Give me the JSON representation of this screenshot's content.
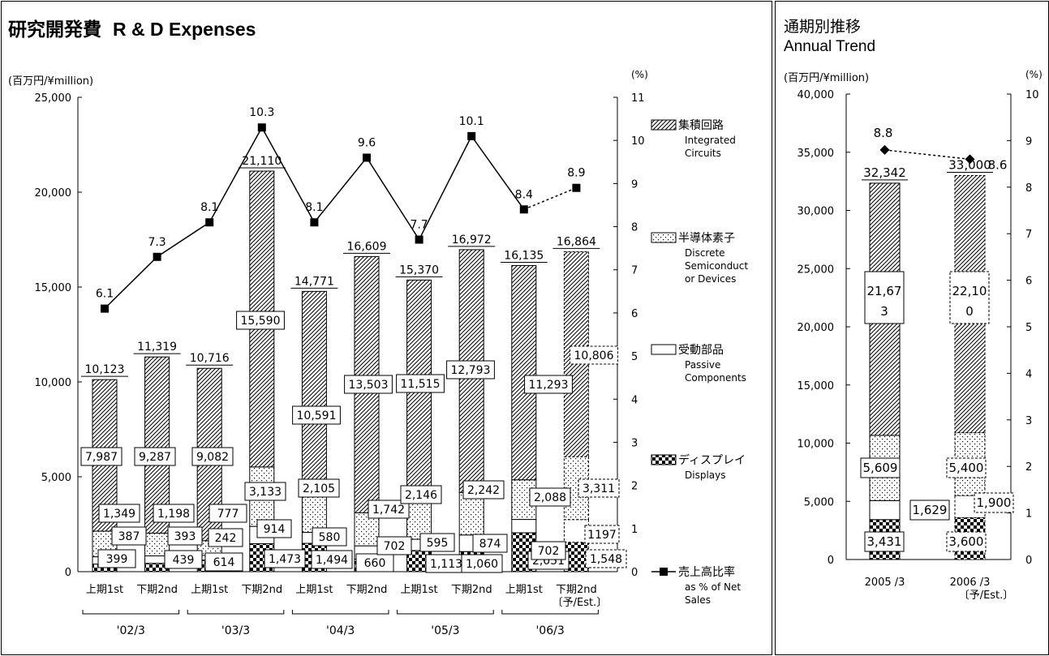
{
  "left_panel": {
    "title_ja": "研究開発費",
    "title_en": "R & D Expenses"
  },
  "right_panel": {
    "title_ja": "通期別推移",
    "title_en": "Annual Trend"
  },
  "colors": {
    "axis": "#000000",
    "bar_outline": "#000000",
    "estimate_outline": "#000000",
    "background": "#ffffff"
  },
  "chart_data": [
    {
      "type": "bar",
      "stacked": true,
      "title": "研究開発費 R & D Expenses",
      "ylabel": "(百万円/¥million)",
      "y2label": "(%)",
      "ylim": [
        0,
        25000
      ],
      "y2lim": [
        0,
        11
      ],
      "yticks": [
        "0",
        "5,000",
        "10,000",
        "15,000",
        "20,000",
        "25,000"
      ],
      "y2ticks": [
        "0",
        "1",
        "2",
        "3",
        "4",
        "5",
        "6",
        "7",
        "8",
        "9",
        "10",
        "11"
      ],
      "categories": [
        "上期1st",
        "下期2nd",
        "上期1st",
        "下期2nd",
        "上期1st",
        "下期2nd",
        "上期1st",
        "下期2nd",
        "上期1st",
        "下期2nd"
      ],
      "estimate_category_note": "〔予/Est.〕",
      "estimate_index": 9,
      "groups": [
        {
          "label": "'02/3",
          "from": 0,
          "to": 1
        },
        {
          "label": "'03/3",
          "from": 2,
          "to": 3
        },
        {
          "label": "'04/3",
          "from": 4,
          "to": 5
        },
        {
          "label": "'05/3",
          "from": 6,
          "to": 7
        },
        {
          "label": "'06/3",
          "from": 8,
          "to": 9
        }
      ],
      "series": [
        {
          "name": "ディスプレイ Displays",
          "pattern": "checker",
          "values": [
            399,
            439,
            614,
            1473,
            1494,
            660,
            1113,
            1060,
            2051,
            1548
          ],
          "labels": [
            "399",
            "439",
            "614",
            "1,473",
            "1,494",
            "660",
            "1,113",
            "1,060",
            "2,051",
            "1,548"
          ]
        },
        {
          "name": "受動部品 Passive Components",
          "pattern": "plain",
          "values": [
            387,
            393,
            242,
            914,
            580,
            702,
            595,
            874,
            702,
            1197
          ],
          "labels": [
            "387",
            "393",
            "242",
            "914",
            "580",
            "702",
            "595",
            "874",
            "702",
            "1197"
          ]
        },
        {
          "name": "半導体素子 Discrete Semiconductor Devices",
          "pattern": "dots",
          "values": [
            1349,
            1198,
            777,
            3133,
            2105,
            1742,
            2146,
            2242,
            2088,
            3311
          ],
          "labels": [
            "1,349",
            "1,198",
            "777",
            "3,133",
            "2,105",
            "1,742",
            "2,146",
            "2,242",
            "2,088",
            "3,311"
          ]
        },
        {
          "name": "集積回路 Integrated Circuits",
          "pattern": "hatch",
          "values": [
            7987,
            9287,
            9082,
            15590,
            10591,
            13503,
            11515,
            12793,
            11293,
            10806
          ],
          "labels": [
            "7,987",
            "9,287",
            "9,082",
            "15,590",
            "10,591",
            "13,503",
            "11,515",
            "12,793",
            "11,293",
            "10,806"
          ]
        }
      ],
      "totals": [
        10123,
        11319,
        10716,
        21110,
        14771,
        16609,
        15370,
        16972,
        16135,
        16864
      ],
      "total_labels": [
        "10,123",
        "11,319",
        "10,716",
        "21,110",
        "14,771",
        "16,609",
        "15,370",
        "16,972",
        "16,135",
        "16,864"
      ],
      "line": {
        "name": "売上高比率 as % of Net Sales",
        "axis": "y2",
        "values": [
          6.1,
          7.3,
          8.1,
          10.3,
          8.1,
          9.6,
          7.7,
          10.1,
          8.4,
          8.9
        ],
        "labels": [
          "6.1",
          "7.3",
          "8.1",
          "10.3",
          "8.1",
          "9.6",
          "7.7",
          "10.1",
          "8.4",
          "8.9"
        ]
      },
      "legend": [
        {
          "pattern": "hatch",
          "ja": "集積回路",
          "en": [
            "Integrated",
            "Circuits"
          ]
        },
        {
          "pattern": "dots",
          "ja": "半導体素子",
          "en": [
            "Discrete",
            "Semiconduct",
            "or Devices"
          ]
        },
        {
          "pattern": "plain",
          "ja": "受動部品",
          "en": [
            "Passive",
            "Components"
          ]
        },
        {
          "pattern": "checker",
          "ja": "ディスプレイ",
          "en": [
            "Displays"
          ]
        },
        {
          "pattern": "line",
          "ja": "売上高比率",
          "en": [
            "as % of Net",
            "Sales"
          ]
        }
      ],
      "legend_position": "right"
    },
    {
      "type": "bar",
      "stacked": true,
      "title": "通期別推移 Annual Trend",
      "ylabel": "(百万円/¥million)",
      "y2label": "(%)",
      "ylim": [
        0,
        40000
      ],
      "y2lim": [
        0,
        10
      ],
      "yticks": [
        "0",
        "5,000",
        "10,000",
        "15,000",
        "20,000",
        "25,000",
        "30,000",
        "35,000",
        "40,000"
      ],
      "y2ticks": [
        "0",
        "1",
        "2",
        "3",
        "4",
        "5",
        "6",
        "7",
        "8",
        "9",
        "10"
      ],
      "categories": [
        "2005 /3",
        "2006 /3"
      ],
      "estimate_category_note": "〔予/Est.〕",
      "estimate_index": 1,
      "series": [
        {
          "name": "ディスプレイ Displays",
          "pattern": "checker",
          "values": [
            3431,
            3600
          ],
          "labels": [
            "3,431",
            "3,600"
          ]
        },
        {
          "name": "受動部品 Passive Components",
          "pattern": "plain",
          "values": [
            1629,
            1900
          ],
          "labels": [
            "1,629",
            "1,900"
          ]
        },
        {
          "name": "半導体素子 Discrete Semiconductor Devices",
          "pattern": "dots",
          "values": [
            5609,
            5400
          ],
          "labels": [
            "5,609",
            "5,400"
          ]
        },
        {
          "name": "集積回路 Integrated Circuits",
          "pattern": "hatch",
          "values": [
            21673,
            22100
          ],
          "labels": [
            "21,673",
            "22,100"
          ]
        }
      ],
      "totals": [
        32342,
        33000
      ],
      "total_labels": [
        "32,342",
        "33,000"
      ],
      "line": {
        "name": "売上高比率",
        "axis": "y2",
        "values": [
          8.8,
          8.6
        ],
        "labels": [
          "8.8",
          "8.6"
        ]
      }
    }
  ]
}
